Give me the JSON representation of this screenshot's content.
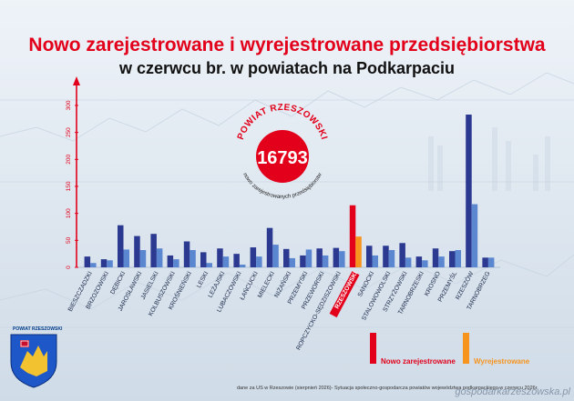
{
  "header": {
    "title_line1": "Nowo zarejestrowane i wyrejestrowane przedsiębiorstwa",
    "title_line2": "w czerwcu br. w powiatach na Podkarpaciu"
  },
  "badge": {
    "arc_top": "POWIAT RZESZOWSKI",
    "value": "16793",
    "arc_bottom": "nowo zarejestrowanych przedsiębiorstw",
    "color": "#e2001a"
  },
  "legend": {
    "new_label": "Nowo zarejestrowane",
    "removed_label": "Wyrejestrowane",
    "new_color": "#e2001a",
    "removed_color": "#f7941d"
  },
  "footer": {
    "source": "dane za US w Rzeszowie (sierpnień 2026)- Sytuacja społeczno-gospodarcza powiatów województwa podkarpackiego w czerwcu 2026r."
  },
  "watermark": "gospodarkarzeszowska.pl",
  "crest": {
    "label": "POWIAT RZESZOWSKI",
    "icon": "coat-of-arms-icon"
  },
  "colors": {
    "dark_series": "#2b3990",
    "light_series": "#5b86d0",
    "highlight_new": "#e2001a",
    "highlight_removed": "#f7941d",
    "axis": "#e2001a"
  },
  "chart_data": {
    "type": "bar",
    "categories": [
      "BIESZCZADZKI",
      "BRZOZOWSKI",
      "DĘBICKI",
      "JAROSŁAWSKI",
      "JASIELSKI",
      "KOLBUSZOWSKI",
      "KROŚNIEŃSKI",
      "LESKI",
      "LEŻAJSKI",
      "LUBACZOWSKI",
      "ŁAŃCUCKI",
      "MIELECKI",
      "NIŻAŃSKI",
      "PRZEMYSKI",
      "PRZEWORSKI",
      "ROPCZYCKO-SĘDZISZOWSKI",
      "RZESZOWSKI",
      "SANOCKI",
      "STALOWOWOLSKI",
      "STRZYŻOWSKI",
      "TARNOBRZESKI",
      "KROSNO",
      "PRZEMYŚL",
      "RZESZÓW",
      "TARNOBRZEG"
    ],
    "highlight_category": "RZESZOWSKI",
    "series": [
      {
        "name": "Nowo zarejestrowane",
        "values": [
          20,
          15,
          78,
          58,
          62,
          22,
          48,
          28,
          35,
          25,
          37,
          73,
          34,
          22,
          35,
          36,
          115,
          40,
          40,
          45,
          20,
          35,
          30,
          283,
          18
        ]
      },
      {
        "name": "Wyrejestrowane",
        "values": [
          8,
          13,
          33,
          32,
          35,
          15,
          32,
          8,
          20,
          5,
          20,
          42,
          17,
          33,
          22,
          30,
          57,
          22,
          32,
          18,
          13,
          20,
          32,
          117,
          18
        ]
      }
    ],
    "ylim": [
      0,
      310
    ],
    "y_ticks": [
      "0",
      "50",
      "100",
      "150",
      "200",
      "250",
      "300"
    ],
    "grid": false
  }
}
